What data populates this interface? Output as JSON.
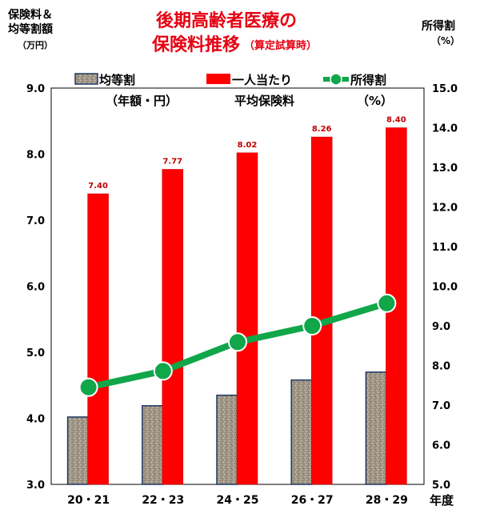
{
  "header": {
    "title_line1": "後期高齢者医療の",
    "title_line2": "保険料推移",
    "title_note": "（算定試算時）",
    "left_axis_label_1": "保険料＆",
    "left_axis_label_2": "均等割額",
    "left_axis_label_3": "（万円）",
    "right_axis_label_1": "所得割",
    "right_axis_label_2": "（%）",
    "x_axis_unit": "年度"
  },
  "colors": {
    "title": "#e60012",
    "bar_red": "#ff0000",
    "bar_gray": "#a49a8a",
    "bar_gray_border": "#1f3864",
    "line_green": "#10a64a"
  },
  "chart_data": {
    "type": "bar",
    "categories": [
      "20・21",
      "22・23",
      "24・25",
      "26・27",
      "28・29"
    ],
    "series": [
      {
        "name": "均等割（年額・円）",
        "type": "bar",
        "axis": "left",
        "values": [
          4.02,
          4.19,
          4.35,
          4.58,
          4.7
        ]
      },
      {
        "name": "一人当たり平均保険料",
        "type": "bar",
        "axis": "left",
        "values": [
          7.4,
          7.77,
          8.02,
          8.26,
          8.4
        ],
        "data_labels": [
          "7.40",
          "7.77",
          "8.02",
          "8.26",
          "8.40"
        ]
      },
      {
        "name": "所得割（%）",
        "type": "line",
        "axis": "right",
        "values": [
          7.45,
          7.86,
          8.59,
          9.0,
          9.57
        ]
      }
    ],
    "left_axis": {
      "ylim": [
        3.0,
        9.0
      ],
      "ticks": [
        "3.0",
        "4.0",
        "5.0",
        "6.0",
        "7.0",
        "8.0",
        "9.0"
      ]
    },
    "right_axis": {
      "ylim": [
        5.0,
        15.0
      ],
      "ticks": [
        "5.0",
        "6.0",
        "7.0",
        "8.0",
        "9.0",
        "10.0",
        "11.0",
        "12.0",
        "13.0",
        "14.0",
        "15.0"
      ]
    },
    "legend": {
      "placement": "top",
      "items": [
        {
          "label_line1": "均等割",
          "label_line2": "（年額・円）"
        },
        {
          "label_line1": "一人当たり",
          "label_line2": "平均保険料"
        },
        {
          "label_line1": "所得割",
          "label_line2": "（%）"
        }
      ]
    },
    "grid": false
  }
}
